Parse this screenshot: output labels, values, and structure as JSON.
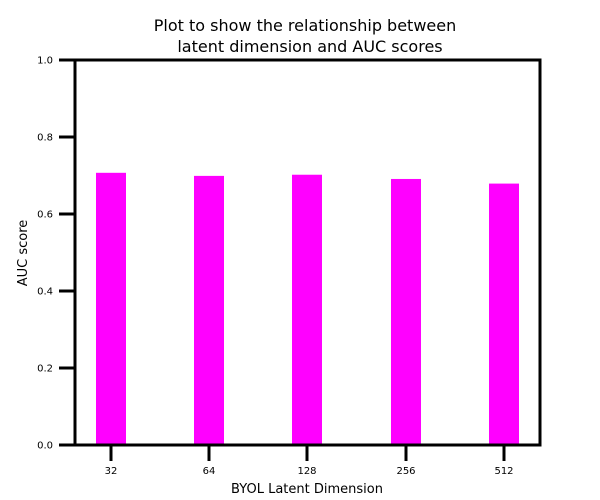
{
  "chart_data": {
    "type": "bar",
    "title_lines": [
      "Plot to show the relationship between",
      "latent dimension and AUC scores"
    ],
    "xlabel": "BYOL Latent Dimension",
    "ylabel": "AUC score",
    "categories": [
      "32",
      "64",
      "128",
      "256",
      "512"
    ],
    "values": [
      0.707,
      0.699,
      0.702,
      0.691,
      0.679
    ],
    "ylim": [
      0.0,
      1.0
    ],
    "yticks": [
      0.0,
      0.2,
      0.4,
      0.6,
      0.8,
      1.0
    ],
    "ytick_labels": [
      "0.0",
      "0.2",
      "0.4",
      "0.6",
      "0.8",
      "1.0"
    ],
    "grid": false,
    "legend": "none",
    "bar_color": "#ff00ff"
  }
}
